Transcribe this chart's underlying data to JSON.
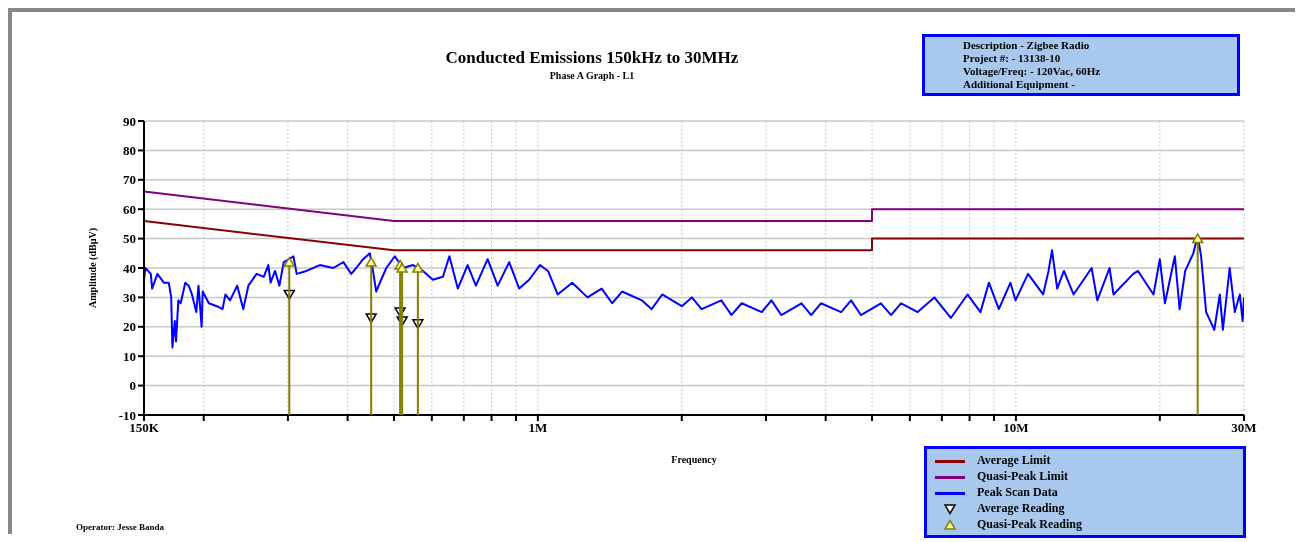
{
  "chart_data": {
    "type": "line",
    "title": "Conducted Emissions 150kHz to 30MHz",
    "subtitle": "Phase A Graph - L1",
    "xlabel": "Frequency",
    "ylabel": "Amplitude (dBµV)",
    "annotations": [
      "Description - Zigbee Radio",
      "Project #: - 13138-10",
      "Voltage/Freq: - 120Vac, 60Hz",
      "Additional Equipment -",
      "Operator: Jesse Banda"
    ],
    "log": "x",
    "xlim": [
      150000,
      30000000
    ],
    "ylim": [
      -10,
      90
    ],
    "xticks": [
      {
        "value": 150000,
        "label": "150K"
      },
      {
        "value": 200000,
        "label": null
      },
      {
        "value": 300000,
        "label": null
      },
      {
        "value": 400000,
        "label": null
      },
      {
        "value": 500000,
        "label": null
      },
      {
        "value": 600000,
        "label": null
      },
      {
        "value": 700000,
        "label": null
      },
      {
        "value": 800000,
        "label": null
      },
      {
        "value": 900000,
        "label": null
      },
      {
        "value": 1000000,
        "label": "1M"
      },
      {
        "value": 2000000,
        "label": null
      },
      {
        "value": 3000000,
        "label": null
      },
      {
        "value": 4000000,
        "label": null
      },
      {
        "value": 5000000,
        "label": null
      },
      {
        "value": 6000000,
        "label": null
      },
      {
        "value": 7000000,
        "label": null
      },
      {
        "value": 8000000,
        "label": null
      },
      {
        "value": 9000000,
        "label": null
      },
      {
        "value": 10000000,
        "label": "10M"
      },
      {
        "value": 20000000,
        "label": null
      },
      {
        "value": 30000000,
        "label": "30M"
      }
    ],
    "yticks": [
      -10,
      0,
      10,
      20,
      30,
      40,
      50,
      60,
      70,
      80,
      90
    ],
    "grid": true,
    "legend": "bottom right",
    "series": [
      {
        "name": "Average Limit",
        "color": "#8b0000",
        "x": [
          150000,
          500000,
          5000000,
          5000000,
          30000000
        ],
        "values": [
          56,
          46,
          46,
          50,
          50
        ]
      },
      {
        "name": "Quasi-Peak Limit",
        "color": "#800080",
        "x": [
          150000,
          500000,
          5000000,
          5000000,
          30000000
        ],
        "values": [
          66,
          56,
          56,
          60,
          60
        ]
      },
      {
        "name": "Peak Scan Data",
        "color": "#0000ff",
        "x": [
          150000,
          151000,
          155000,
          156000,
          160000,
          165000,
          169000,
          171000,
          172000,
          174000,
          175000,
          177000,
          179000,
          183000,
          186000,
          189000,
          193000,
          195000,
          198000,
          199000,
          205000,
          213000,
          219000,
          222000,
          227000,
          235000,
          242000,
          248000,
          258000,
          267000,
          273000,
          276000,
          282000,
          288000,
          294000,
          302000,
          308000,
          313000,
          328000,
          350000,
          373000,
          392000,
          407000,
          417000,
          431000,
          445000,
          452000,
          459000,
          470000,
          482000,
          502000,
          522000,
          548000,
          575000,
          603000,
          633000,
          653000,
          680000,
          713000,
          742000,
          785000,
          824000,
          871000,
          914000,
          959000,
          1010000,
          1050000,
          1100000,
          1180000,
          1270000,
          1360000,
          1430000,
          1500000,
          1650000,
          1730000,
          1820000,
          2000000,
          2100000,
          2200000,
          2420000,
          2540000,
          2670000,
          2940000,
          3080000,
          3230000,
          3560000,
          3730000,
          3910000,
          4310000,
          4520000,
          4740000,
          5220000,
          5480000,
          5750000,
          6230000,
          6750000,
          7310000,
          7920000,
          8430000,
          8780000,
          9210000,
          9740000,
          9980000,
          10600000,
          11400000,
          11700000,
          11900000,
          12200000,
          12600000,
          13200000,
          14400000,
          14800000,
          15700000,
          16000000,
          17600000,
          18000000,
          19400000,
          20000000,
          20500000,
          21500000,
          22000000,
          22600000,
          23500000,
          24000000,
          24400000,
          25000000,
          26000000,
          26700000,
          27100000,
          28000000,
          28700000,
          29400000,
          29800000,
          30000000
        ],
        "values": [
          36,
          40,
          38,
          33,
          38,
          35,
          35,
          30,
          13,
          22,
          15,
          29,
          28,
          35,
          34,
          31,
          25,
          34,
          20,
          32,
          28,
          27,
          26,
          31,
          29,
          34,
          26,
          34,
          38,
          37,
          41,
          35,
          39,
          34,
          42,
          43,
          44,
          38,
          39,
          41,
          40,
          42,
          38,
          40,
          43,
          45,
          39,
          32,
          36,
          40,
          44,
          40,
          41,
          39,
          36,
          37,
          44,
          33,
          41,
          34,
          43,
          34,
          42,
          33,
          36,
          41,
          39,
          31,
          35,
          30,
          33,
          28,
          32,
          29,
          26,
          31,
          27,
          30,
          26,
          29,
          24,
          28,
          25,
          29,
          24,
          28,
          24,
          28,
          25,
          29,
          24,
          28,
          24,
          28,
          25,
          30,
          23,
          31,
          25,
          35,
          26,
          35,
          29,
          38,
          31,
          39,
          46,
          33,
          39,
          31,
          40,
          29,
          40,
          31,
          38,
          39,
          31,
          43,
          28,
          44,
          26,
          39,
          45,
          51,
          44,
          25,
          19,
          31,
          19,
          40,
          25,
          31,
          22,
          30
        ]
      },
      {
        "name": "Average Reading",
        "type": "scatter",
        "color": "#000000",
        "marker": "triangle",
        "x": [
          302000,
          448000,
          515000,
          520000,
          561000
        ],
        "values": [
          31,
          23,
          25,
          22,
          21
        ]
      },
      {
        "name": "Quasi-Peak Reading",
        "type": "scatter",
        "color": "#808000",
        "marker": "triangle",
        "x": [
          302000,
          448000,
          515000,
          520000,
          561000,
          24000000
        ],
        "values": [
          42,
          42,
          41,
          40,
          40,
          50
        ],
        "errors": [
          [
            -10,
            42
          ],
          [
            -10,
            42
          ],
          [
            -10,
            41
          ],
          [
            -10,
            40
          ],
          [
            -10,
            40
          ],
          [
            -10,
            50
          ]
        ]
      }
    ]
  }
}
